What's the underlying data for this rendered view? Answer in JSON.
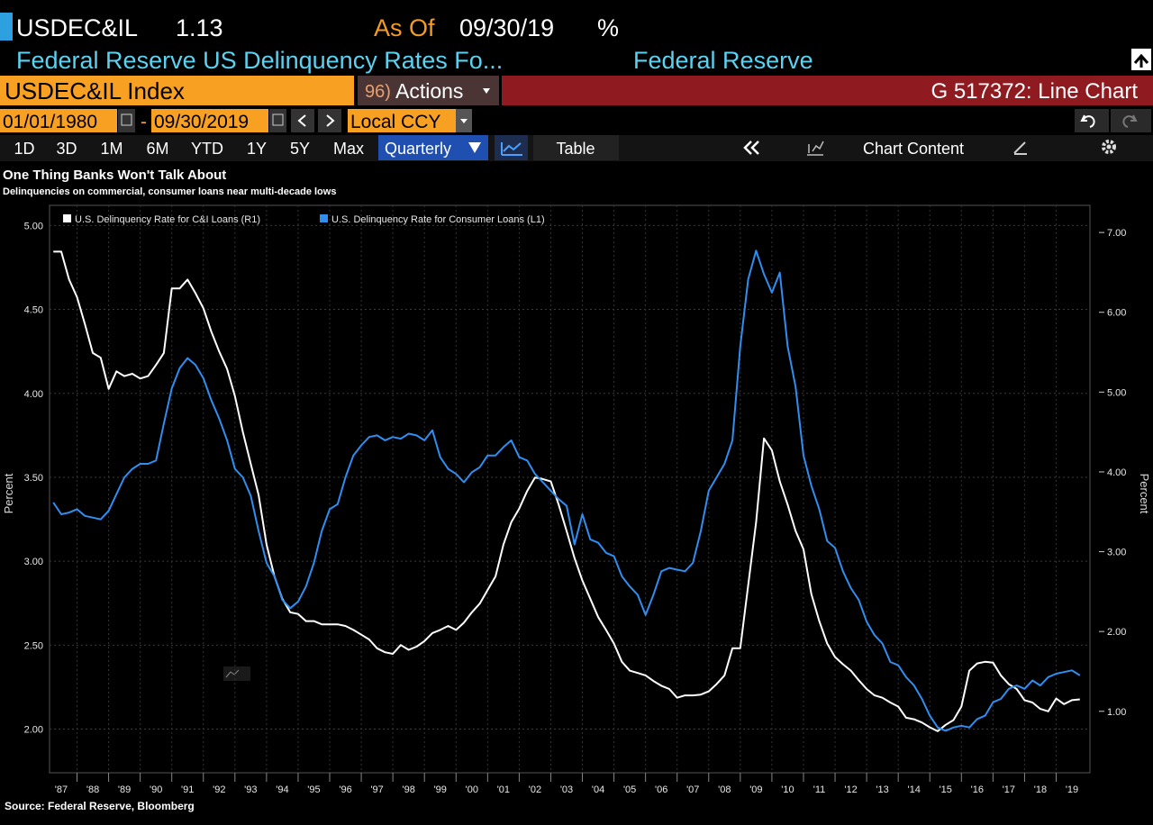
{
  "header": {
    "ticker": "USDEC&IL",
    "value": "1.13",
    "as_of_label": "As Of",
    "as_of_date": "09/30/19",
    "units": "%",
    "description": "Federal Reserve US Delinquency Rates Fo...",
    "source": "Federal Reserve"
  },
  "toolbar": {
    "security": "USDEC&IL Index",
    "actions_num": "96)",
    "actions": "Actions",
    "chart_id": "G 517372: Line Chart"
  },
  "dates": {
    "start": "01/01/1980",
    "separator": "-",
    "end": "09/30/2019",
    "currency": "Local CCY"
  },
  "periods": [
    "1D",
    "3D",
    "1M",
    "6M",
    "YTD",
    "1Y",
    "5Y",
    "Max"
  ],
  "frequency": "Quarterly",
  "table": "Table",
  "chart_content": "Chart Content",
  "chart_data": {
    "type": "line",
    "title": "One Thing Banks Won't Talk About",
    "subtitle": "Delinquencies on commercial, consumer loans near multi-decade lows",
    "ylabel": "Percent",
    "y2label": "Percent",
    "source": "Source: Federal Reserve, Bloomberg",
    "grid": true,
    "x": [
      1987.25,
      1987.5,
      1987.75,
      1988,
      1988.25,
      1988.5,
      1988.75,
      1989,
      1989.25,
      1989.5,
      1989.75,
      1990,
      1990.25,
      1990.5,
      1990.75,
      1991,
      1991.25,
      1991.5,
      1991.75,
      1992,
      1992.25,
      1992.5,
      1992.75,
      1993,
      1993.25,
      1993.5,
      1993.75,
      1994,
      1994.25,
      1994.5,
      1994.75,
      1995,
      1995.25,
      1995.5,
      1995.75,
      1996,
      1996.25,
      1996.5,
      1996.75,
      1997,
      1997.25,
      1997.5,
      1997.75,
      1998,
      1998.25,
      1998.5,
      1998.75,
      1999,
      1999.25,
      1999.5,
      1999.75,
      2000,
      2000.25,
      2000.5,
      2000.75,
      2001,
      2001.25,
      2001.5,
      2001.75,
      2002,
      2002.25,
      2002.5,
      2002.75,
      2003,
      2003.25,
      2003.5,
      2003.75,
      2004,
      2004.25,
      2004.5,
      2004.75,
      2005,
      2005.25,
      2005.5,
      2005.75,
      2006,
      2006.25,
      2006.5,
      2006.75,
      2007,
      2007.25,
      2007.5,
      2007.75,
      2008,
      2008.25,
      2008.5,
      2008.75,
      2009,
      2009.25,
      2009.5,
      2009.75,
      2010,
      2010.25,
      2010.5,
      2010.75,
      2011,
      2011.25,
      2011.5,
      2011.75,
      2012,
      2012.25,
      2012.5,
      2012.75,
      2013,
      2013.25,
      2013.5,
      2013.75,
      2014,
      2014.25,
      2014.5,
      2014.75,
      2015,
      2015.25,
      2015.5,
      2015.75,
      2016,
      2016.25,
      2016.5,
      2016.75,
      2017,
      2017.25,
      2017.5,
      2017.75,
      2018,
      2018.25,
      2018.5,
      2018.75,
      2019,
      2019.25,
      2019.5,
      2019.75
    ],
    "xlim": [
      1987.13,
      2020.07
    ],
    "xticks": [
      {
        "value": 1987,
        "label": "'87"
      },
      {
        "value": 1988,
        "label": "'88"
      },
      {
        "value": 1989,
        "label": "'89"
      },
      {
        "value": 1990,
        "label": "'90"
      },
      {
        "value": 1991,
        "label": "'91"
      },
      {
        "value": 1992,
        "label": "'92"
      },
      {
        "value": 1993,
        "label": "'93"
      },
      {
        "value": 1994,
        "label": "'94"
      },
      {
        "value": 1995,
        "label": "'95"
      },
      {
        "value": 1996,
        "label": "'96"
      },
      {
        "value": 1997,
        "label": "'97"
      },
      {
        "value": 1998,
        "label": "'98"
      },
      {
        "value": 1999,
        "label": "'99"
      },
      {
        "value": 2000,
        "label": "'00"
      },
      {
        "value": 2001,
        "label": "'01"
      },
      {
        "value": 2002,
        "label": "'02"
      },
      {
        "value": 2003,
        "label": "'03"
      },
      {
        "value": 2004,
        "label": "'04"
      },
      {
        "value": 2005,
        "label": "'05"
      },
      {
        "value": 2006,
        "label": "'06"
      },
      {
        "value": 2007,
        "label": "'07"
      },
      {
        "value": 2008,
        "label": "'08"
      },
      {
        "value": 2009,
        "label": "'09"
      },
      {
        "value": 2010,
        "label": "'10"
      },
      {
        "value": 2011,
        "label": "'11"
      },
      {
        "value": 2012,
        "label": "'12"
      },
      {
        "value": 2013,
        "label": "'13"
      },
      {
        "value": 2014,
        "label": "'14"
      },
      {
        "value": 2015,
        "label": "'15"
      },
      {
        "value": 2016,
        "label": "'16"
      },
      {
        "value": 2017,
        "label": "'17"
      },
      {
        "value": 2018,
        "label": "'18"
      },
      {
        "value": 2019,
        "label": "'19"
      }
    ],
    "ylim": [
      1.74,
      5.12
    ],
    "yticks": [
      {
        "value": 2,
        "label": "2.00"
      },
      {
        "value": 2.5,
        "label": "2.50"
      },
      {
        "value": 3,
        "label": "3.00"
      },
      {
        "value": 3.5,
        "label": "3.50"
      },
      {
        "value": 4,
        "label": "4.00"
      },
      {
        "value": 4.5,
        "label": "4.50"
      },
      {
        "value": 5,
        "label": "5.00"
      }
    ],
    "y2lim": [
      0.23,
      7.34
    ],
    "y2ticks": [
      {
        "value": 1,
        "label": "1.00"
      },
      {
        "value": 2,
        "label": "2.00"
      },
      {
        "value": 3,
        "label": "3.00"
      },
      {
        "value": 4,
        "label": "4.00"
      },
      {
        "value": 5,
        "label": "5.00"
      },
      {
        "value": 6,
        "label": "6.00"
      },
      {
        "value": 7,
        "label": "7.00"
      }
    ],
    "series": [
      {
        "name": "U.S. Delinquency Rate for C&I Loans (R1)",
        "color": "#ffffff",
        "axis": "y2",
        "values": [
          6.76,
          6.76,
          6.41,
          6.19,
          5.85,
          5.49,
          5.43,
          5.04,
          5.26,
          5.2,
          5.23,
          5.17,
          5.2,
          5.34,
          5.49,
          6.3,
          6.3,
          6.41,
          6.24,
          6.05,
          5.76,
          5.51,
          5.29,
          4.95,
          4.5,
          4.1,
          3.71,
          3.09,
          2.69,
          2.41,
          2.24,
          2.22,
          2.13,
          2.13,
          2.09,
          2.09,
          2.09,
          2.07,
          2.02,
          1.96,
          1.9,
          1.79,
          1.74,
          1.72,
          1.83,
          1.77,
          1.81,
          1.88,
          1.98,
          2.02,
          2.07,
          2.02,
          2.11,
          2.24,
          2.35,
          2.52,
          2.69,
          3.09,
          3.37,
          3.54,
          3.76,
          3.93,
          3.91,
          3.88,
          3.59,
          3.26,
          2.92,
          2.64,
          2.41,
          2.18,
          2.02,
          1.85,
          1.62,
          1.51,
          1.48,
          1.45,
          1.38,
          1.32,
          1.28,
          1.17,
          1.2,
          1.2,
          1.21,
          1.25,
          1.34,
          1.45,
          1.79,
          1.79,
          2.58,
          3.37,
          4.42,
          4.27,
          3.88,
          3.59,
          3.26,
          3.03,
          2.47,
          2.13,
          1.85,
          1.68,
          1.59,
          1.51,
          1.39,
          1.28,
          1.2,
          1.17,
          1.11,
          1.06,
          0.92,
          0.9,
          0.86,
          0.8,
          0.75,
          0.83,
          0.89,
          1.06,
          1.51,
          1.6,
          1.62,
          1.61,
          1.45,
          1.34,
          1.28,
          1.14,
          1.11,
          1.03,
          1,
          1.16,
          1.09,
          1.14,
          1.15
        ]
      },
      {
        "name": "U.S. Delinquency Rate for Consumer Loans (L1)",
        "color": "#2f8ef0",
        "values": [
          3.35,
          3.28,
          3.29,
          3.31,
          3.27,
          3.26,
          3.25,
          3.3,
          3.4,
          3.5,
          3.55,
          3.58,
          3.58,
          3.6,
          3.82,
          4.03,
          4.15,
          4.21,
          4.17,
          4.09,
          3.96,
          3.85,
          3.72,
          3.55,
          3.5,
          3.39,
          3.18,
          2.99,
          2.91,
          2.77,
          2.72,
          2.76,
          2.85,
          2.99,
          3.18,
          3.31,
          3.34,
          3.5,
          3.63,
          3.69,
          3.74,
          3.75,
          3.72,
          3.74,
          3.73,
          3.76,
          3.75,
          3.72,
          3.78,
          3.62,
          3.55,
          3.52,
          3.47,
          3.53,
          3.56,
          3.63,
          3.63,
          3.68,
          3.72,
          3.62,
          3.6,
          3.52,
          3.47,
          3.42,
          3.37,
          3.33,
          3.1,
          3.28,
          3.13,
          3.11,
          3.05,
          3.03,
          2.91,
          2.85,
          2.8,
          2.68,
          2.8,
          2.94,
          2.96,
          2.95,
          2.94,
          2.99,
          3.18,
          3.42,
          3.5,
          3.58,
          3.72,
          4.28,
          4.68,
          4.85,
          4.71,
          4.6,
          4.72,
          4.28,
          4.04,
          3.63,
          3.45,
          3.31,
          3.12,
          3.08,
          2.94,
          2.84,
          2.77,
          2.64,
          2.56,
          2.51,
          2.4,
          2.38,
          2.31,
          2.26,
          2.18,
          2.08,
          2.01,
          1.99,
          2.01,
          2.02,
          2.01,
          2.06,
          2.08,
          2.16,
          2.18,
          2.24,
          2.26,
          2.24,
          2.29,
          2.26,
          2.31,
          2.33,
          2.34,
          2.35,
          2.32
        ]
      }
    ]
  }
}
